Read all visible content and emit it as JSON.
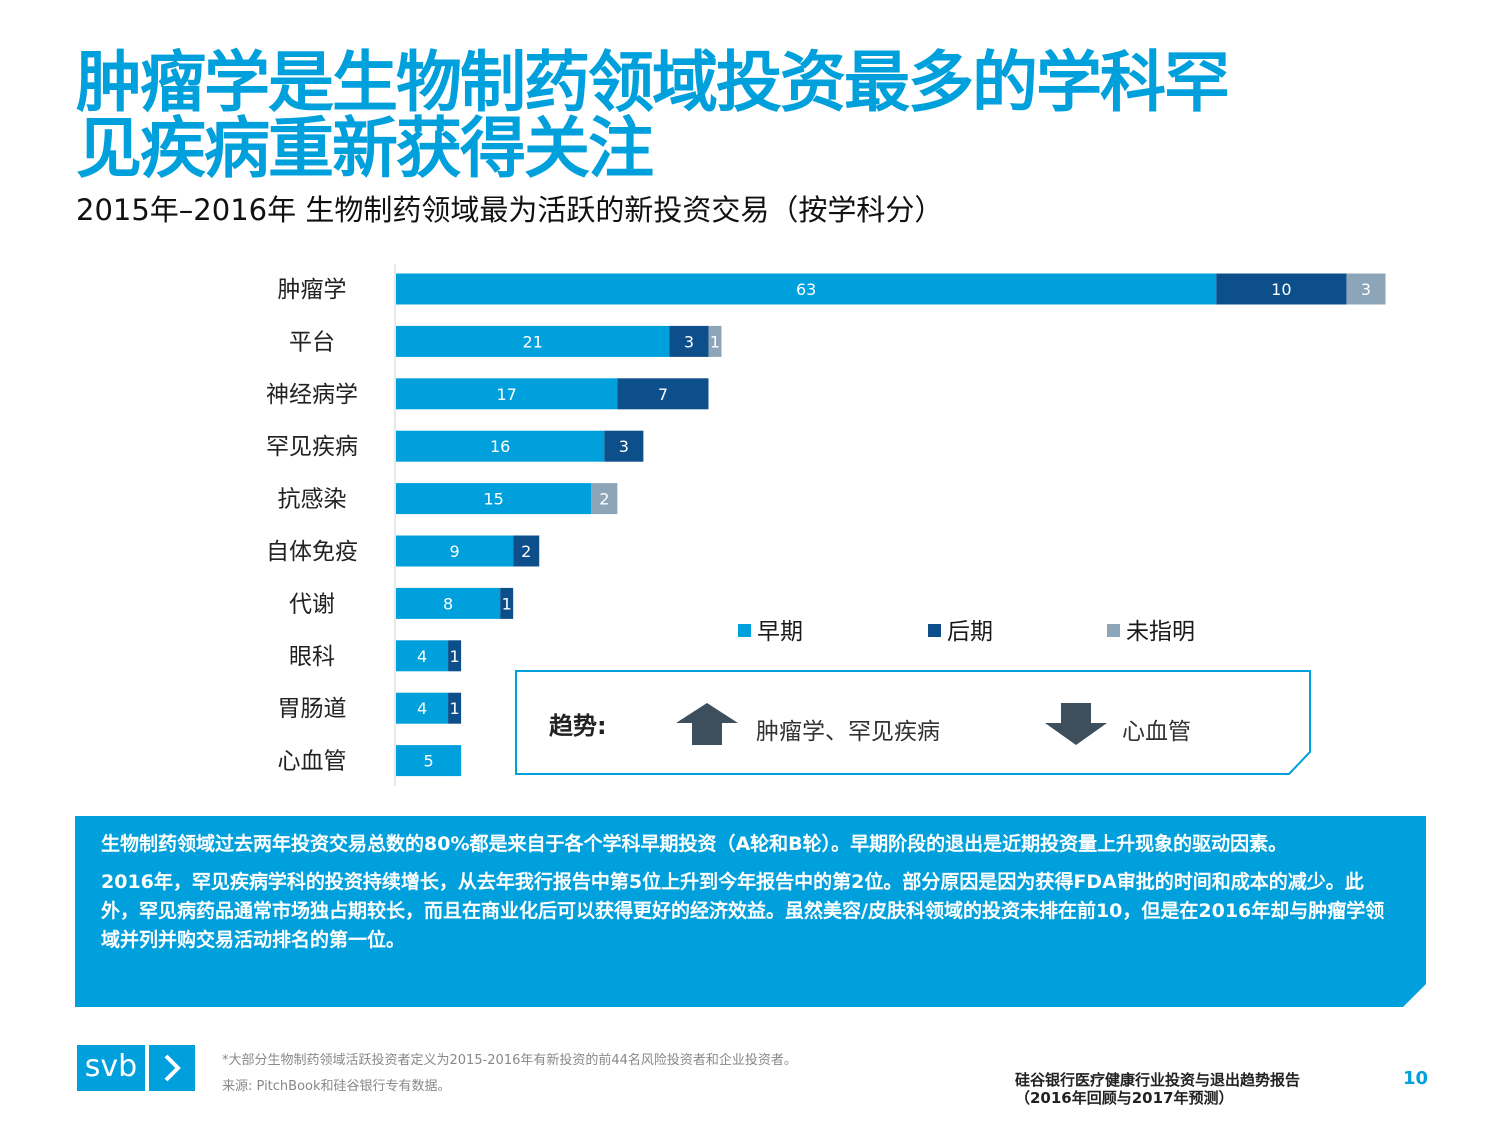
{
  "title": {
    "line1": "肿瘤学是生物制药领域投资最多的学科罕",
    "line2": "见疾病重新获得关注"
  },
  "subtitle": "2015年–2016年 生物制药领域最为活跃的新投资交易（按学科分）",
  "chart_data": {
    "type": "bar",
    "orientation": "horizontal",
    "stacked": true,
    "categories": [
      "肿瘤学",
      "平台",
      "神经病学",
      "罕见疾病",
      "抗感染",
      "自体免疫",
      "代谢",
      "眼科",
      "胃肠道",
      "心血管"
    ],
    "series": [
      {
        "name": "早期",
        "color": "#00a0dc",
        "values": [
          63,
          21,
          17,
          16,
          15,
          9,
          8,
          4,
          4,
          5
        ]
      },
      {
        "name": "后期",
        "color": "#0d4f8b",
        "values": [
          10,
          3,
          7,
          3,
          0,
          2,
          1,
          1,
          1,
          0
        ]
      },
      {
        "name": "未指明",
        "color": "#8ca5b8",
        "values": [
          3,
          1,
          0,
          0,
          2,
          0,
          0,
          0,
          0,
          0
        ]
      }
    ],
    "data_labels": true,
    "legend_position": "bottom-right",
    "grid": false
  },
  "legend": {
    "early": "早期",
    "late": "后期",
    "unspecified": "未指明"
  },
  "trend": {
    "label": "趋势:",
    "up_text": "肿瘤学、罕见疾病",
    "down_text": "心血管"
  },
  "info": {
    "p1": "生物制药领域过去两年投资交易总数的80%都是来自于各个学科早期投资（A轮和B轮）。早期阶段的退出是近期投资量上升现象的驱动因素。",
    "p2": "2016年，罕见疾病学科的投资持续增长，从去年我行报告中第5位上升到今年报告中的第2位。部分原因是因为获得FDA审批的时间和成本的减少。此外，罕见病药品通常市场独占期较长，而且在商业化后可以获得更好的经济效益。虽然美容/皮肤科领域的投资未排在前10，但是在2016年却与肿瘤学领域并列并购交易活动排名的第一位。"
  },
  "footer": {
    "logo": "svb",
    "footnote1": "*大部分生物制药领域活跃投资者定义为2015-2016年有新投资的前44名风险投资者和企业投资者。",
    "footnote2": "来源: PitchBook和硅谷银行专有数据。",
    "report_line1": "硅谷银行医疗健康行业投资与退出趋势报告",
    "report_line2": "（2016年回顾与2017年预测）",
    "page": "10"
  },
  "colors": {
    "accent": "#00a0dc",
    "dark": "#0d4f8b",
    "gray": "#8ca5b8",
    "arrow": "#3d4f5c"
  }
}
